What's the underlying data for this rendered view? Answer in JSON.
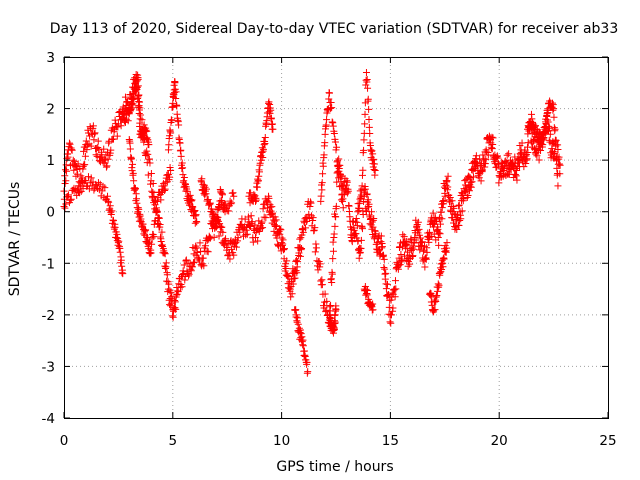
{
  "chart_data": {
    "type": "scatter",
    "title": "Day 113 of 2020, Sidereal Day-to-day VTEC variation (SDTVAR) for receiver ab33",
    "xlabel": "GPS time / hours",
    "ylabel": "SDTVAR / TECUs",
    "xlim": [
      0,
      25
    ],
    "ylim": [
      -4,
      3
    ],
    "xticks": [
      0,
      5,
      10,
      15,
      20,
      25
    ],
    "yticks": [
      -4,
      -3,
      -2,
      -1,
      0,
      1,
      2,
      3
    ],
    "grid": true,
    "marker": "+",
    "color": "#ff0000",
    "series": [
      {
        "name": "SDTVAR",
        "trace_x": [
          0.0,
          0.2,
          0.5,
          0.8,
          1.0,
          1.3,
          1.6,
          1.9,
          2.2,
          2.5,
          2.8,
          3.1,
          3.3,
          3.5,
          3.7,
          4.0,
          4.2,
          4.4,
          4.6,
          4.8,
          5.0,
          5.2,
          5.5,
          5.8,
          6.1,
          6.4,
          6.7,
          7.0,
          7.3,
          7.6,
          7.9,
          8.2,
          8.5,
          8.8,
          9.1,
          9.4,
          9.6,
          9.8,
          10.0,
          10.2,
          10.4,
          10.6,
          10.8,
          11.0,
          11.3,
          11.6,
          11.9,
          12.2,
          12.4,
          12.6,
          12.8,
          13.0,
          13.2,
          13.4,
          13.6,
          13.8,
          14.0,
          14.2,
          14.4,
          14.6,
          14.8,
          15.0,
          15.2,
          15.4,
          15.6,
          15.8,
          16.0,
          16.2,
          16.4,
          16.6,
          16.8,
          17.0,
          17.2,
          17.4,
          17.6,
          17.8,
          18.0,
          18.2,
          18.4,
          18.6,
          18.8,
          19.0,
          19.2,
          19.4,
          19.6,
          19.8,
          20.0,
          20.2,
          20.4,
          20.6,
          20.8,
          21.0,
          21.2,
          21.4,
          21.6,
          21.8,
          22.0,
          22.2,
          22.4,
          22.6,
          22.8
        ],
        "trace_y": [
          0.4,
          1.2,
          0.9,
          0.6,
          1.3,
          1.5,
          1.2,
          1.0,
          1.4,
          1.7,
          2.0,
          2.2,
          2.5,
          1.8,
          1.4,
          0.6,
          0.2,
          -0.3,
          -0.8,
          -1.5,
          -1.9,
          -1.6,
          -1.2,
          -1.0,
          -0.7,
          -0.9,
          -0.5,
          -0.2,
          -0.4,
          -0.8,
          -0.6,
          -0.3,
          -0.2,
          -0.5,
          -0.2,
          0.3,
          -0.1,
          -0.4,
          -0.6,
          -1.1,
          -1.5,
          -1.2,
          -0.8,
          -0.4,
          0.1,
          -0.7,
          -1.6,
          -2.0,
          -0.5,
          0.9,
          0.2,
          0.6,
          -0.5,
          -0.2,
          -0.8,
          0.3,
          0.1,
          -0.3,
          -0.6,
          -0.7,
          -1.4,
          -2.0,
          -1.5,
          -0.9,
          -0.6,
          -0.9,
          -0.7,
          -0.3,
          -0.6,
          -0.9,
          -0.4,
          -0.2,
          -0.5,
          0.2,
          0.6,
          0.1,
          -0.3,
          0.0,
          0.4,
          0.5,
          0.8,
          0.9,
          0.8,
          1.2,
          1.4,
          1.1,
          0.7,
          0.8,
          0.9,
          0.9,
          0.8,
          1.2,
          1.0,
          1.6,
          1.4,
          1.2,
          1.3,
          1.9,
          1.1,
          1.3,
          0.9
        ],
        "branches": [
          {
            "x": [
              0.0,
              0.5,
              1.0,
              1.5,
              2.0,
              2.3,
              2.5,
              2.7
            ],
            "y": [
              0.1,
              0.4,
              0.6,
              0.5,
              0.3,
              -0.3,
              -0.6,
              -1.2
            ]
          },
          {
            "x": [
              2.7,
              3.0,
              3.2,
              3.4,
              3.5,
              3.7,
              3.9
            ],
            "y": [
              1.8,
              1.9,
              2.3,
              2.6,
              1.5,
              1.6,
              1.3
            ]
          },
          {
            "x": [
              3.0,
              3.2,
              3.4,
              3.6,
              3.8,
              4.0,
              4.3,
              4.6,
              4.9
            ],
            "y": [
              1.4,
              0.6,
              0.0,
              -0.3,
              -0.5,
              -0.8,
              0.2,
              0.5,
              0.8
            ]
          },
          {
            "x": [
              4.8,
              5.0,
              5.1,
              5.3,
              5.5,
              5.7,
              5.9,
              6.1
            ],
            "y": [
              1.2,
              2.1,
              2.5,
              1.4,
              0.6,
              0.3,
              0.1,
              -0.2
            ]
          },
          {
            "x": [
              6.3,
              6.5,
              6.8,
              7.0,
              7.2,
              7.4,
              7.8
            ],
            "y": [
              0.6,
              0.4,
              0.0,
              -0.3,
              0.4,
              0.0,
              0.3
            ]
          },
          {
            "x": [
              8.5,
              8.8,
              9.0,
              9.2,
              9.4,
              9.6
            ],
            "y": [
              0.3,
              0.2,
              0.9,
              1.3,
              2.1,
              1.6
            ]
          },
          {
            "x": [
              10.6,
              10.8,
              11.0,
              11.2
            ],
            "y": [
              -1.9,
              -2.3,
              -2.6,
              -3.1
            ]
          },
          {
            "x": [
              11.8,
              12.0,
              12.2,
              12.5,
              12.8
            ],
            "y": [
              0.2,
              1.5,
              2.3,
              1.2,
              0.5
            ]
          },
          {
            "x": [
              12.2,
              12.3,
              12.4,
              12.5
            ],
            "y": [
              -2.1,
              -2.2,
              -2.3,
              -1.9
            ]
          },
          {
            "x": [
              13.5,
              13.7,
              13.9,
              14.1,
              14.3
            ],
            "y": [
              0.0,
              0.5,
              2.7,
              1.2,
              0.8
            ]
          },
          {
            "x": [
              13.8,
              14.0,
              14.2
            ],
            "y": [
              -1.5,
              -1.7,
              -1.9
            ]
          },
          {
            "x": [
              16.8,
              17.0,
              17.2,
              17.4,
              17.6
            ],
            "y": [
              -1.6,
              -1.9,
              -1.4,
              -1.0,
              -0.6
            ]
          },
          {
            "x": [
              21.3,
              21.5,
              21.7,
              21.9,
              22.1,
              22.3,
              22.5,
              22.7
            ],
            "y": [
              1.6,
              1.8,
              1.5,
              1.4,
              1.6,
              2.1,
              2.0,
              0.5
            ]
          }
        ]
      }
    ]
  }
}
